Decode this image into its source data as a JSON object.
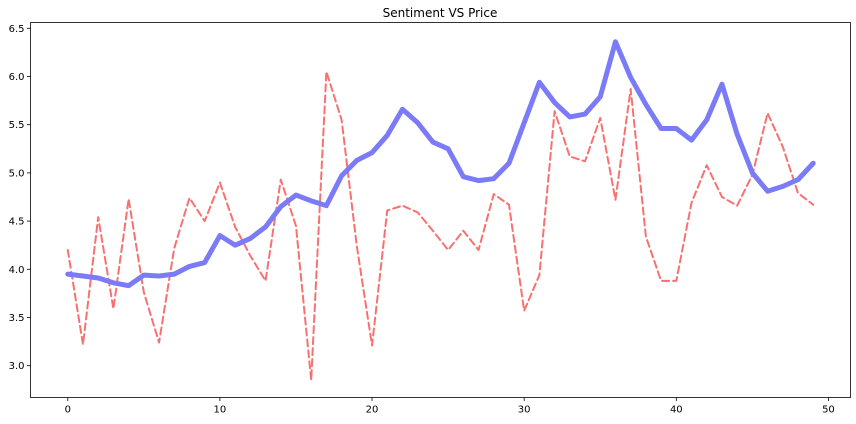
{
  "chart_data": {
    "type": "line",
    "title": "Sentiment VS Price",
    "xlabel": "",
    "ylabel": "",
    "xlim": [
      -2.45,
      51.45
    ],
    "ylim": [
      2.67,
      6.56
    ],
    "grid": false,
    "x_ticks": [
      0,
      10,
      20,
      30,
      40,
      50
    ],
    "y_ticks": [
      3.0,
      3.5,
      4.0,
      4.5,
      5.0,
      5.5,
      6.0,
      6.5
    ],
    "x_tick_labels": [
      "0",
      "10",
      "20",
      "30",
      "40",
      "50"
    ],
    "y_tick_labels": [
      "3.0",
      "3.5",
      "4.0",
      "4.5",
      "5.0",
      "5.5",
      "6.0",
      "6.5"
    ],
    "x": [
      0,
      1,
      2,
      3,
      4,
      5,
      6,
      7,
      8,
      9,
      10,
      11,
      12,
      13,
      14,
      15,
      16,
      17,
      18,
      19,
      20,
      21,
      22,
      23,
      24,
      25,
      26,
      27,
      28,
      29,
      30,
      31,
      32,
      33,
      34,
      35,
      36,
      37,
      38,
      39,
      40,
      41,
      42,
      43,
      44,
      45,
      46,
      47,
      48,
      49
    ],
    "series": [
      {
        "color": "#7b7bf7",
        "style": "solid",
        "values": [
          3.95,
          3.93,
          3.91,
          3.86,
          3.83,
          3.94,
          3.93,
          3.95,
          4.03,
          4.07,
          4.35,
          4.25,
          4.32,
          4.44,
          4.65,
          4.77,
          4.71,
          4.66,
          4.97,
          5.13,
          5.21,
          5.39,
          5.66,
          5.52,
          5.32,
          5.25,
          4.96,
          4.92,
          4.94,
          5.1,
          5.52,
          5.94,
          5.73,
          5.58,
          5.61,
          5.79,
          6.36,
          5.99,
          5.71,
          5.46,
          5.46,
          5.34,
          5.55,
          5.92,
          5.4,
          5.0,
          4.81,
          4.86,
          4.93,
          5.1
        ]
      },
      {
        "color": "#f87171",
        "style": "dashed",
        "values": [
          4.2,
          3.22,
          4.54,
          3.59,
          4.73,
          3.76,
          3.24,
          4.22,
          4.74,
          4.5,
          4.9,
          4.44,
          4.14,
          3.88,
          4.93,
          4.45,
          2.85,
          6.05,
          5.55,
          4.24,
          3.21,
          4.61,
          4.66,
          4.59,
          4.4,
          4.2,
          4.4,
          4.2,
          4.78,
          4.67,
          3.57,
          3.94,
          5.64,
          5.17,
          5.12,
          5.57,
          4.72,
          5.87,
          4.34,
          3.88,
          3.88,
          4.69,
          5.08,
          4.75,
          4.66,
          4.98,
          5.62,
          5.27,
          4.79,
          4.67
        ]
      }
    ]
  }
}
